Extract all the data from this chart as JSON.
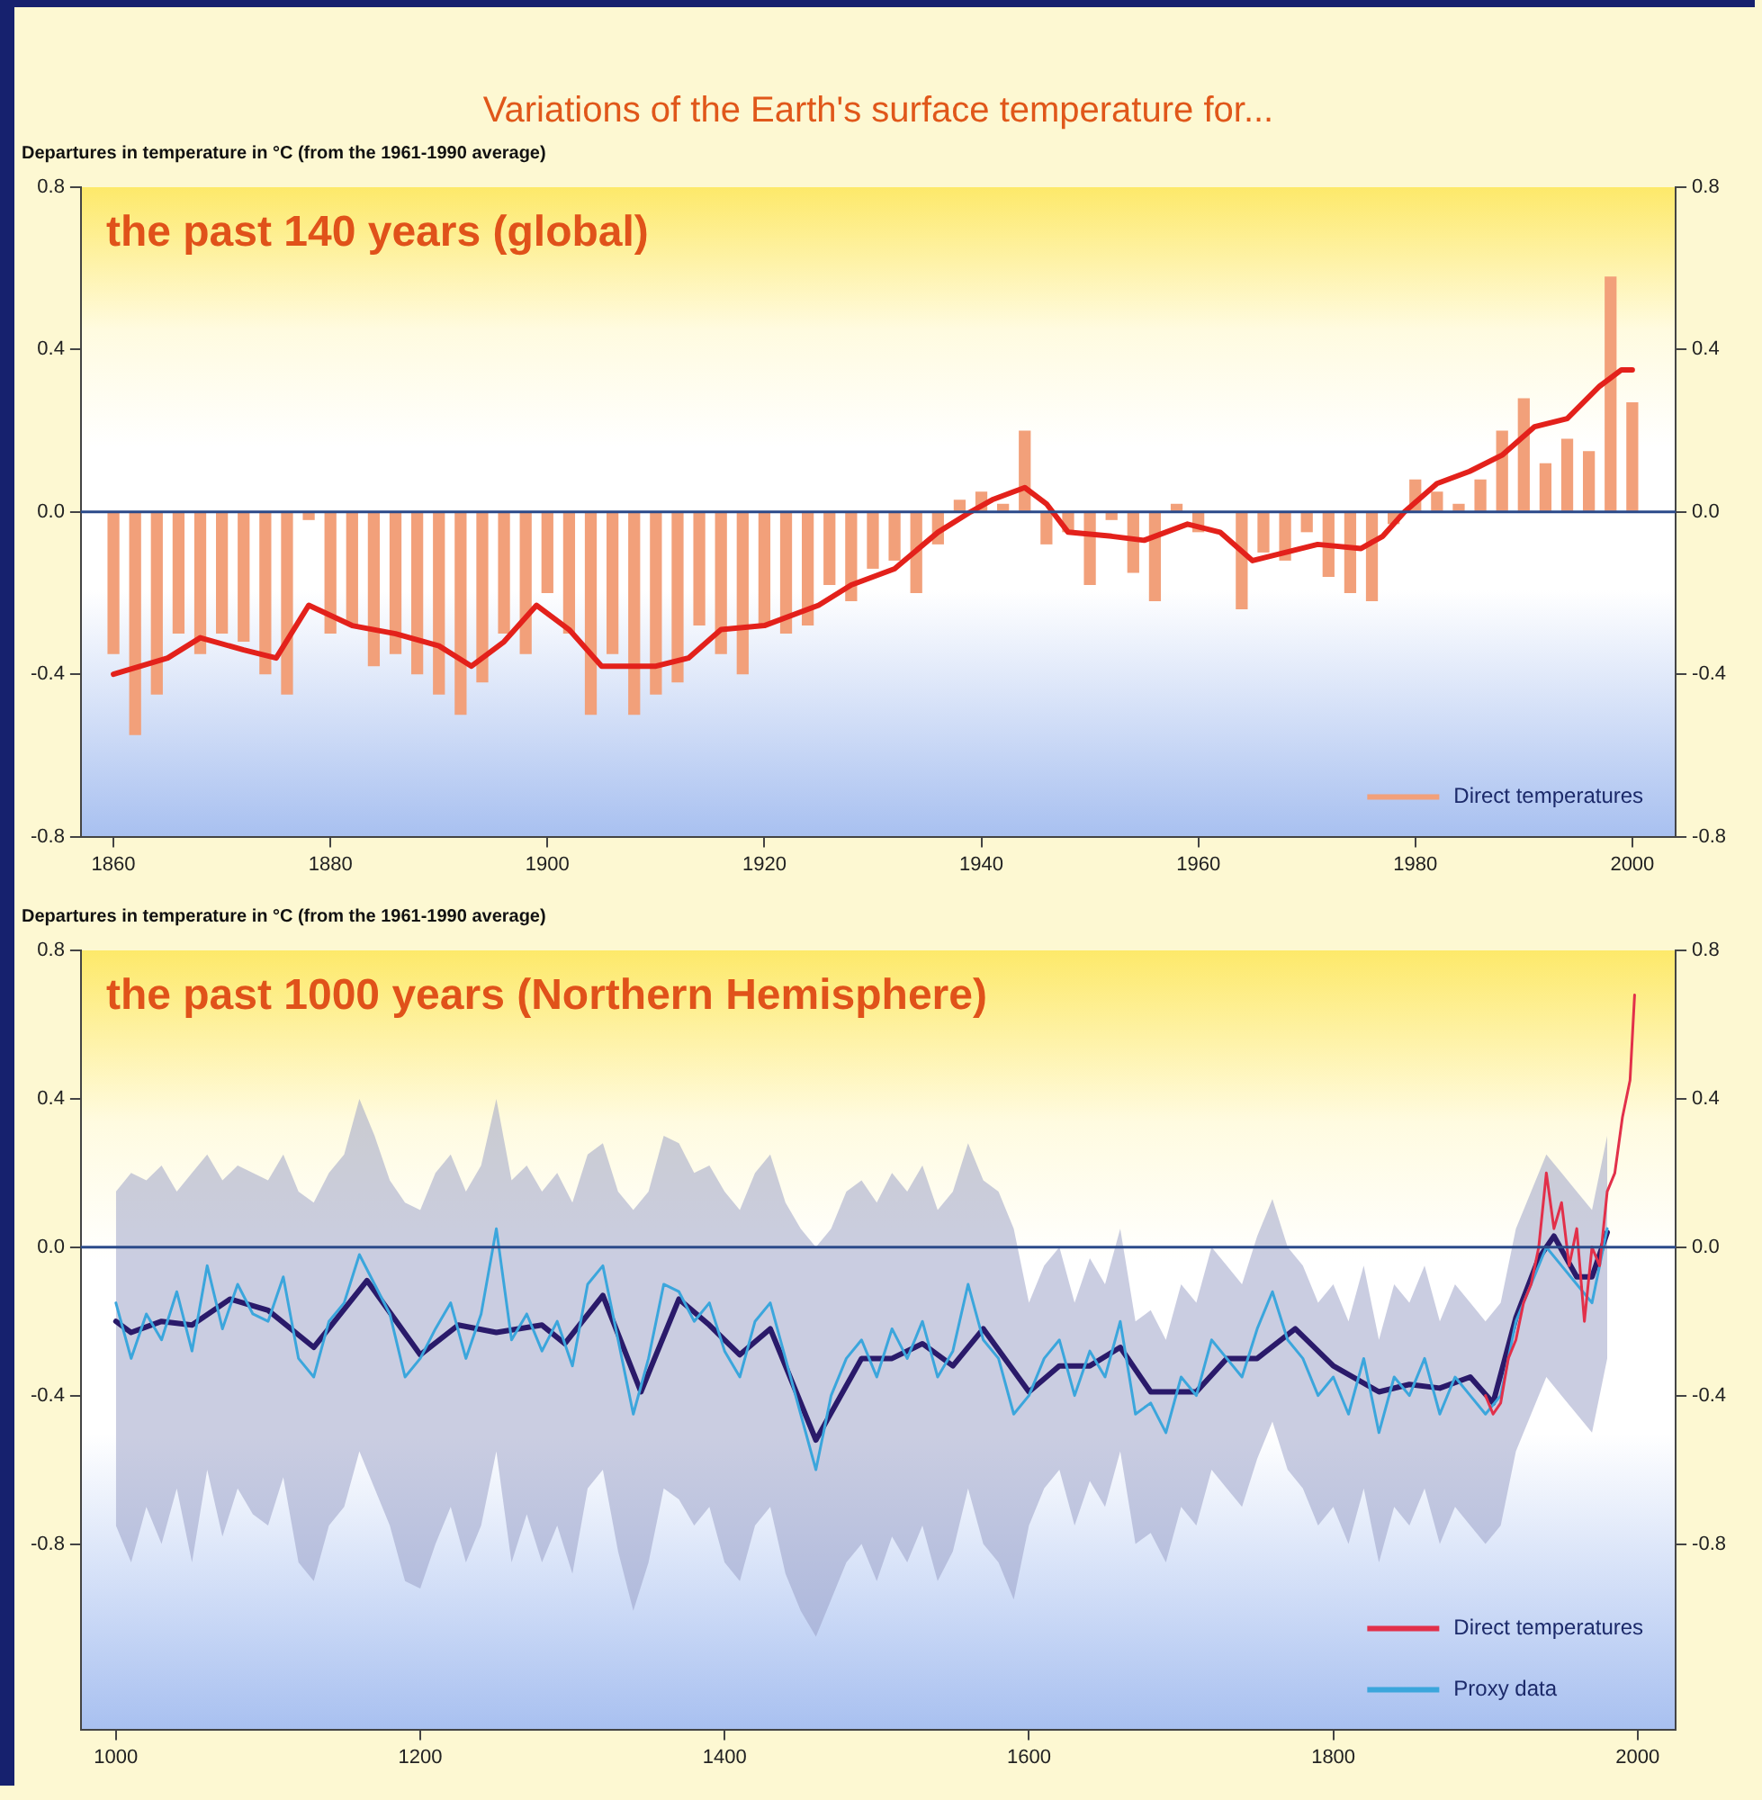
{
  "chart_data": [
    {
      "type": "bar",
      "title": "Variations of the Earth's surface temperature for...",
      "subtitle": "the past 140 years (global)",
      "ylabel": "Departures in temperature in °C (from the 1961-1990 average)",
      "series": [
        {
          "name": "Direct temperatures",
          "color": "#f2a07a",
          "x": [
            1860,
            1862,
            1864,
            1866,
            1868,
            1870,
            1872,
            1874,
            1876,
            1878,
            1880,
            1882,
            1884,
            1886,
            1888,
            1890,
            1892,
            1894,
            1896,
            1898,
            1900,
            1902,
            1904,
            1906,
            1908,
            1910,
            1912,
            1914,
            1916,
            1918,
            1920,
            1922,
            1924,
            1926,
            1928,
            1930,
            1932,
            1934,
            1936,
            1938,
            1940,
            1942,
            1944,
            1946,
            1948,
            1950,
            1952,
            1954,
            1956,
            1958,
            1960,
            1962,
            1964,
            1966,
            1968,
            1970,
            1972,
            1974,
            1976,
            1978,
            1980,
            1982,
            1984,
            1986,
            1988,
            1990,
            1992,
            1994,
            1996,
            1998,
            2000
          ],
          "values": [
            -0.35,
            -0.55,
            -0.45,
            -0.3,
            -0.35,
            -0.3,
            -0.32,
            -0.4,
            -0.45,
            -0.02,
            -0.3,
            -0.28,
            -0.38,
            -0.35,
            -0.4,
            -0.45,
            -0.5,
            -0.42,
            -0.3,
            -0.35,
            -0.2,
            -0.3,
            -0.5,
            -0.35,
            -0.5,
            -0.45,
            -0.42,
            -0.28,
            -0.35,
            -0.4,
            -0.28,
            -0.3,
            -0.28,
            -0.18,
            -0.22,
            -0.14,
            -0.12,
            -0.2,
            -0.08,
            0.03,
            0.05,
            0.02,
            0.2,
            -0.08,
            -0.05,
            -0.18,
            -0.02,
            -0.15,
            -0.22,
            0.02,
            -0.05,
            0.0,
            -0.24,
            -0.1,
            -0.12,
            -0.05,
            -0.16,
            -0.2,
            -0.22,
            -0.03,
            0.08,
            0.05,
            0.02,
            0.08,
            0.2,
            0.28,
            0.12,
            0.18,
            0.15,
            0.58,
            0.27
          ]
        },
        {
          "type": "line",
          "color": "#e3211b",
          "x": [
            1860,
            1865,
            1868,
            1872,
            1875,
            1878,
            1882,
            1886,
            1890,
            1893,
            1896,
            1899,
            1902,
            1905,
            1910,
            1913,
            1916,
            1920,
            1925,
            1928,
            1932,
            1936,
            1939,
            1941,
            1944,
            1946,
            1948,
            1952,
            1955,
            1959,
            1962,
            1965,
            1968,
            1971,
            1975,
            1977,
            1979,
            1982,
            1985,
            1988,
            1991,
            1994,
            1997,
            1999,
            2000
          ],
          "values": [
            -0.4,
            -0.36,
            -0.31,
            -0.34,
            -0.36,
            -0.23,
            -0.28,
            -0.3,
            -0.33,
            -0.38,
            -0.32,
            -0.23,
            -0.29,
            -0.38,
            -0.38,
            -0.36,
            -0.29,
            -0.28,
            -0.23,
            -0.18,
            -0.14,
            -0.05,
            0.0,
            0.03,
            0.06,
            0.02,
            -0.05,
            -0.06,
            -0.07,
            -0.03,
            -0.05,
            -0.12,
            -0.1,
            -0.08,
            -0.09,
            -0.06,
            0.0,
            0.07,
            0.1,
            0.14,
            0.21,
            0.23,
            0.31,
            0.35,
            0.35
          ]
        }
      ],
      "xlim": [
        1857,
        2004
      ],
      "xticks": [
        1860,
        1880,
        1900,
        1920,
        1940,
        1960,
        1980,
        2000
      ],
      "ylim": [
        -0.8,
        0.8
      ],
      "yticks": [
        0.8,
        0.4,
        {
          "value": 0,
          "label": "0.0"
        },
        -0.4,
        -0.8
      ],
      "y2lim": [
        -0.8,
        0.8
      ],
      "y2ticks": [
        0.8,
        0.4,
        {
          "value": 0,
          "label": "0.0"
        },
        -0.4,
        -0.8
      ],
      "ref_lines": [
        {
          "axis": "y",
          "value": 0,
          "color": "#2b4a8a"
        }
      ],
      "legend": "bottom right",
      "grid": false
    },
    {
      "type": "line",
      "subtitle": "the past 1000 years (Northern Hemisphere)",
      "ylabel": "Departures in temperature in °C (from the 1961-1990 average)",
      "series": [
        {
          "name": "Direct temperatures",
          "color": "#e2304a",
          "x": [
            1900,
            1905,
            1910,
            1915,
            1920,
            1925,
            1930,
            1935,
            1940,
            1945,
            1950,
            1955,
            1960,
            1965,
            1970,
            1975,
            1980,
            1985,
            1990,
            1995,
            1998
          ],
          "values": [
            -0.4,
            -0.45,
            -0.42,
            -0.3,
            -0.25,
            -0.15,
            -0.1,
            0.0,
            0.2,
            0.05,
            0.12,
            -0.05,
            0.05,
            -0.2,
            0.0,
            -0.05,
            0.15,
            0.2,
            0.35,
            0.45,
            0.68
          ]
        },
        {
          "name": "Proxy data",
          "color": "#3ba6dc",
          "x": [
            1000,
            1010,
            1020,
            1030,
            1040,
            1050,
            1060,
            1070,
            1080,
            1090,
            1100,
            1110,
            1120,
            1130,
            1140,
            1150,
            1160,
            1170,
            1180,
            1190,
            1200,
            1210,
            1220,
            1230,
            1240,
            1250,
            1260,
            1270,
            1280,
            1290,
            1300,
            1310,
            1320,
            1330,
            1340,
            1350,
            1360,
            1370,
            1380,
            1390,
            1400,
            1410,
            1420,
            1430,
            1440,
            1450,
            1460,
            1470,
            1480,
            1490,
            1500,
            1510,
            1520,
            1530,
            1540,
            1550,
            1560,
            1570,
            1580,
            1590,
            1600,
            1610,
            1620,
            1630,
            1640,
            1650,
            1660,
            1670,
            1680,
            1690,
            1700,
            1710,
            1720,
            1730,
            1740,
            1750,
            1760,
            1770,
            1780,
            1790,
            1800,
            1810,
            1820,
            1830,
            1840,
            1850,
            1860,
            1870,
            1880,
            1890,
            1900,
            1910,
            1920,
            1930,
            1940,
            1950,
            1960,
            1970,
            1980
          ],
          "values": [
            -0.15,
            -0.3,
            -0.18,
            -0.25,
            -0.12,
            -0.28,
            -0.05,
            -0.22,
            -0.1,
            -0.18,
            -0.2,
            -0.08,
            -0.3,
            -0.35,
            -0.2,
            -0.15,
            -0.02,
            -0.1,
            -0.18,
            -0.35,
            -0.3,
            -0.22,
            -0.15,
            -0.3,
            -0.18,
            0.05,
            -0.25,
            -0.18,
            -0.28,
            -0.2,
            -0.32,
            -0.1,
            -0.05,
            -0.25,
            -0.45,
            -0.3,
            -0.1,
            -0.12,
            -0.2,
            -0.15,
            -0.28,
            -0.35,
            -0.2,
            -0.15,
            -0.3,
            -0.45,
            -0.6,
            -0.4,
            -0.3,
            -0.25,
            -0.35,
            -0.22,
            -0.3,
            -0.2,
            -0.35,
            -0.28,
            -0.1,
            -0.25,
            -0.3,
            -0.45,
            -0.4,
            -0.3,
            -0.25,
            -0.4,
            -0.28,
            -0.35,
            -0.2,
            -0.45,
            -0.42,
            -0.5,
            -0.35,
            -0.4,
            -0.25,
            -0.3,
            -0.35,
            -0.22,
            -0.12,
            -0.25,
            -0.3,
            -0.4,
            -0.35,
            -0.45,
            -0.3,
            -0.5,
            -0.35,
            -0.4,
            -0.3,
            -0.45,
            -0.35,
            -0.4,
            -0.45,
            -0.4,
            -0.2,
            -0.1,
            0.0,
            -0.05,
            -0.1,
            -0.15,
            0.05
          ],
          "upper": [
            0.15,
            0.2,
            0.18,
            0.22,
            0.15,
            0.2,
            0.25,
            0.18,
            0.22,
            0.2,
            0.18,
            0.25,
            0.15,
            0.12,
            0.2,
            0.25,
            0.4,
            0.3,
            0.18,
            0.12,
            0.1,
            0.2,
            0.25,
            0.15,
            0.22,
            0.4,
            0.18,
            0.22,
            0.15,
            0.2,
            0.12,
            0.25,
            0.28,
            0.15,
            0.1,
            0.15,
            0.3,
            0.28,
            0.2,
            0.22,
            0.15,
            0.1,
            0.2,
            0.25,
            0.12,
            0.05,
            0.0,
            0.05,
            0.15,
            0.18,
            0.12,
            0.2,
            0.15,
            0.22,
            0.1,
            0.15,
            0.28,
            0.18,
            0.15,
            0.05,
            -0.15,
            -0.05,
            0.0,
            -0.15,
            -0.03,
            -0.1,
            0.05,
            -0.2,
            -0.17,
            -0.25,
            -0.1,
            -0.15,
            0.0,
            -0.05,
            -0.1,
            0.03,
            0.13,
            0.0,
            -0.05,
            -0.15,
            -0.1,
            -0.2,
            -0.05,
            -0.25,
            -0.1,
            -0.15,
            -0.05,
            -0.2,
            -0.1,
            -0.15,
            -0.2,
            -0.15,
            0.05,
            0.15,
            0.25,
            0.2,
            0.15,
            0.1,
            0.3
          ],
          "lower": [
            -0.75,
            -0.85,
            -0.7,
            -0.8,
            -0.65,
            -0.85,
            -0.6,
            -0.78,
            -0.65,
            -0.72,
            -0.75,
            -0.62,
            -0.85,
            -0.9,
            -0.75,
            -0.7,
            -0.55,
            -0.65,
            -0.75,
            -0.9,
            -0.92,
            -0.8,
            -0.7,
            -0.85,
            -0.75,
            -0.55,
            -0.85,
            -0.72,
            -0.85,
            -0.75,
            -0.88,
            -0.65,
            -0.6,
            -0.82,
            -0.98,
            -0.85,
            -0.65,
            -0.68,
            -0.75,
            -0.7,
            -0.85,
            -0.9,
            -0.75,
            -0.7,
            -0.88,
            -0.98,
            -1.05,
            -0.95,
            -0.85,
            -0.8,
            -0.9,
            -0.78,
            -0.85,
            -0.75,
            -0.9,
            -0.82,
            -0.65,
            -0.8,
            -0.85,
            -0.95,
            -0.75,
            -0.65,
            -0.6,
            -0.75,
            -0.63,
            -0.7,
            -0.55,
            -0.8,
            -0.77,
            -0.85,
            -0.7,
            -0.75,
            -0.6,
            -0.65,
            -0.7,
            -0.57,
            -0.47,
            -0.6,
            -0.65,
            -0.75,
            -0.7,
            -0.8,
            -0.65,
            -0.85,
            -0.7,
            -0.75,
            -0.65,
            -0.8,
            -0.7,
            -0.75,
            -0.8,
            -0.75,
            -0.55,
            -0.45,
            -0.35,
            -0.4,
            -0.45,
            -0.5,
            -0.3
          ]
        },
        {
          "color": "#2a1a6a",
          "x": [
            1000,
            1010,
            1030,
            1050,
            1075,
            1100,
            1130,
            1165,
            1200,
            1225,
            1250,
            1280,
            1295,
            1320,
            1345,
            1370,
            1390,
            1410,
            1430,
            1460,
            1490,
            1510,
            1530,
            1550,
            1570,
            1600,
            1620,
            1640,
            1660,
            1680,
            1710,
            1730,
            1750,
            1775,
            1800,
            1830,
            1850,
            1870,
            1890,
            1905,
            1920,
            1935,
            1945,
            1960,
            1970,
            1980
          ],
          "values": [
            -0.2,
            -0.23,
            -0.2,
            -0.21,
            -0.14,
            -0.17,
            -0.27,
            -0.09,
            -0.29,
            -0.21,
            -0.23,
            -0.21,
            -0.26,
            -0.13,
            -0.39,
            -0.14,
            -0.21,
            -0.29,
            -0.22,
            -0.52,
            -0.3,
            -0.3,
            -0.26,
            -0.32,
            -0.22,
            -0.39,
            -0.32,
            -0.32,
            -0.27,
            -0.39,
            -0.39,
            -0.3,
            -0.3,
            -0.22,
            -0.32,
            -0.39,
            -0.37,
            -0.38,
            -0.35,
            -0.42,
            -0.19,
            -0.03,
            0.03,
            -0.08,
            -0.08,
            0.04
          ]
        }
      ],
      "xlim": [
        977,
        2025
      ],
      "xticks": [
        1000,
        1200,
        1400,
        1600,
        1800,
        2000
      ],
      "ylim": [
        -1.3,
        0.8
      ],
      "yticks": [
        0.8,
        0.4,
        {
          "value": 0,
          "label": "0.0"
        },
        -0.4,
        -0.8
      ],
      "y2lim": [
        -1.3,
        0.8
      ],
      "y2ticks": [
        0.8,
        0.4,
        {
          "value": 0,
          "label": "0.0"
        },
        -0.4,
        -0.8
      ],
      "ref_lines": [
        {
          "axis": "y",
          "value": 0,
          "color": "#2b4a8a"
        }
      ],
      "legend": "bottom right",
      "grid": false
    }
  ]
}
